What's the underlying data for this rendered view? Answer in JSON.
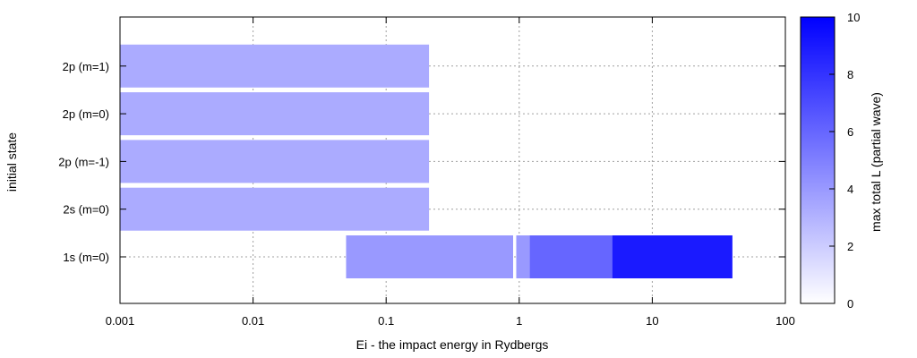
{
  "chart_data": {
    "type": "bar",
    "orientation": "horizontal",
    "xlabel": "Ei - the impact energy in Rydbergs",
    "ylabel": "initial state",
    "x_scale": "log",
    "xlim": [
      0.001,
      100
    ],
    "x_ticks": [
      0.001,
      0.01,
      0.1,
      1,
      10,
      100
    ],
    "x_tick_labels": [
      "0.001",
      "0.01",
      "0.1",
      "1",
      "10",
      "100"
    ],
    "categories": [
      "1s (m=0)",
      "2s (m=0)",
      "2p (m=-1)",
      "2p (m=0)",
      "2p (m=1)"
    ],
    "grid": true,
    "colorbar": {
      "label": "max total L (partial wave)",
      "range": [
        0,
        10
      ],
      "ticks": [
        0,
        2,
        4,
        6,
        8,
        10
      ],
      "color_low": "#ffffff",
      "color_high": "#0000ff"
    },
    "segments": [
      {
        "state": "1s (m=0)",
        "x_start": 0.05,
        "x_end": 0.9,
        "value": 4
      },
      {
        "state": "1s (m=0)",
        "x_start": 0.95,
        "x_end": 1.2,
        "value": 4
      },
      {
        "state": "1s (m=0)",
        "x_start": 1.2,
        "x_end": 5,
        "value": 6
      },
      {
        "state": "1s (m=0)",
        "x_start": 5,
        "x_end": 40,
        "value": 9
      },
      {
        "state": "2s (m=0)",
        "x_start": 0.001,
        "x_end": 0.21,
        "value": 3.3
      },
      {
        "state": "2p (m=-1)",
        "x_start": 0.001,
        "x_end": 0.21,
        "value": 3.3
      },
      {
        "state": "2p (m=0)",
        "x_start": 0.001,
        "x_end": 0.21,
        "value": 3.3
      },
      {
        "state": "2p (m=1)",
        "x_start": 0.001,
        "x_end": 0.21,
        "value": 3.3
      }
    ]
  }
}
